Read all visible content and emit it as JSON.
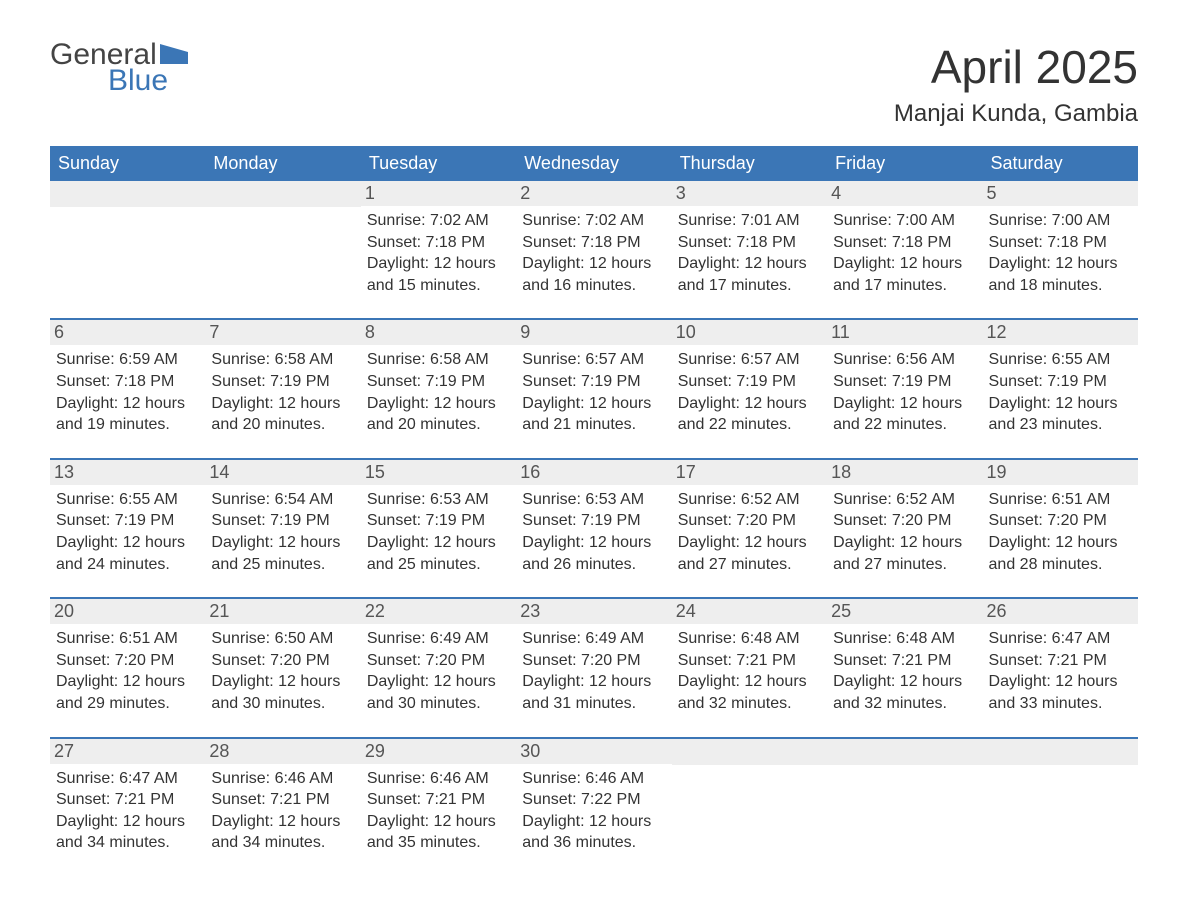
{
  "brand": {
    "top": "General",
    "bottom": "Blue",
    "flag_color": "#3b76b6",
    "top_color": "#444444"
  },
  "title": "April 2025",
  "location": "Manjai Kunda, Gambia",
  "colors": {
    "header_bg": "#3b76b6",
    "header_text": "#ffffff",
    "daynum_bg": "#eeeeee",
    "text": "#333333",
    "week_border": "#3b76b6",
    "background": "#ffffff"
  },
  "typography": {
    "title_fontsize": 46,
    "location_fontsize": 24,
    "dow_fontsize": 18,
    "body_fontsize": 16
  },
  "days_of_week": [
    "Sunday",
    "Monday",
    "Tuesday",
    "Wednesday",
    "Thursday",
    "Friday",
    "Saturday"
  ],
  "weeks": [
    [
      {
        "n": "",
        "sun": "",
        "set": "",
        "dl1": "",
        "dl2": ""
      },
      {
        "n": "",
        "sun": "",
        "set": "",
        "dl1": "",
        "dl2": ""
      },
      {
        "n": "1",
        "sun": "Sunrise: 7:02 AM",
        "set": "Sunset: 7:18 PM",
        "dl1": "Daylight: 12 hours",
        "dl2": "and 15 minutes."
      },
      {
        "n": "2",
        "sun": "Sunrise: 7:02 AM",
        "set": "Sunset: 7:18 PM",
        "dl1": "Daylight: 12 hours",
        "dl2": "and 16 minutes."
      },
      {
        "n": "3",
        "sun": "Sunrise: 7:01 AM",
        "set": "Sunset: 7:18 PM",
        "dl1": "Daylight: 12 hours",
        "dl2": "and 17 minutes."
      },
      {
        "n": "4",
        "sun": "Sunrise: 7:00 AM",
        "set": "Sunset: 7:18 PM",
        "dl1": "Daylight: 12 hours",
        "dl2": "and 17 minutes."
      },
      {
        "n": "5",
        "sun": "Sunrise: 7:00 AM",
        "set": "Sunset: 7:18 PM",
        "dl1": "Daylight: 12 hours",
        "dl2": "and 18 minutes."
      }
    ],
    [
      {
        "n": "6",
        "sun": "Sunrise: 6:59 AM",
        "set": "Sunset: 7:18 PM",
        "dl1": "Daylight: 12 hours",
        "dl2": "and 19 minutes."
      },
      {
        "n": "7",
        "sun": "Sunrise: 6:58 AM",
        "set": "Sunset: 7:19 PM",
        "dl1": "Daylight: 12 hours",
        "dl2": "and 20 minutes."
      },
      {
        "n": "8",
        "sun": "Sunrise: 6:58 AM",
        "set": "Sunset: 7:19 PM",
        "dl1": "Daylight: 12 hours",
        "dl2": "and 20 minutes."
      },
      {
        "n": "9",
        "sun": "Sunrise: 6:57 AM",
        "set": "Sunset: 7:19 PM",
        "dl1": "Daylight: 12 hours",
        "dl2": "and 21 minutes."
      },
      {
        "n": "10",
        "sun": "Sunrise: 6:57 AM",
        "set": "Sunset: 7:19 PM",
        "dl1": "Daylight: 12 hours",
        "dl2": "and 22 minutes."
      },
      {
        "n": "11",
        "sun": "Sunrise: 6:56 AM",
        "set": "Sunset: 7:19 PM",
        "dl1": "Daylight: 12 hours",
        "dl2": "and 22 minutes."
      },
      {
        "n": "12",
        "sun": "Sunrise: 6:55 AM",
        "set": "Sunset: 7:19 PM",
        "dl1": "Daylight: 12 hours",
        "dl2": "and 23 minutes."
      }
    ],
    [
      {
        "n": "13",
        "sun": "Sunrise: 6:55 AM",
        "set": "Sunset: 7:19 PM",
        "dl1": "Daylight: 12 hours",
        "dl2": "and 24 minutes."
      },
      {
        "n": "14",
        "sun": "Sunrise: 6:54 AM",
        "set": "Sunset: 7:19 PM",
        "dl1": "Daylight: 12 hours",
        "dl2": "and 25 minutes."
      },
      {
        "n": "15",
        "sun": "Sunrise: 6:53 AM",
        "set": "Sunset: 7:19 PM",
        "dl1": "Daylight: 12 hours",
        "dl2": "and 25 minutes."
      },
      {
        "n": "16",
        "sun": "Sunrise: 6:53 AM",
        "set": "Sunset: 7:19 PM",
        "dl1": "Daylight: 12 hours",
        "dl2": "and 26 minutes."
      },
      {
        "n": "17",
        "sun": "Sunrise: 6:52 AM",
        "set": "Sunset: 7:20 PM",
        "dl1": "Daylight: 12 hours",
        "dl2": "and 27 minutes."
      },
      {
        "n": "18",
        "sun": "Sunrise: 6:52 AM",
        "set": "Sunset: 7:20 PM",
        "dl1": "Daylight: 12 hours",
        "dl2": "and 27 minutes."
      },
      {
        "n": "19",
        "sun": "Sunrise: 6:51 AM",
        "set": "Sunset: 7:20 PM",
        "dl1": "Daylight: 12 hours",
        "dl2": "and 28 minutes."
      }
    ],
    [
      {
        "n": "20",
        "sun": "Sunrise: 6:51 AM",
        "set": "Sunset: 7:20 PM",
        "dl1": "Daylight: 12 hours",
        "dl2": "and 29 minutes."
      },
      {
        "n": "21",
        "sun": "Sunrise: 6:50 AM",
        "set": "Sunset: 7:20 PM",
        "dl1": "Daylight: 12 hours",
        "dl2": "and 30 minutes."
      },
      {
        "n": "22",
        "sun": "Sunrise: 6:49 AM",
        "set": "Sunset: 7:20 PM",
        "dl1": "Daylight: 12 hours",
        "dl2": "and 30 minutes."
      },
      {
        "n": "23",
        "sun": "Sunrise: 6:49 AM",
        "set": "Sunset: 7:20 PM",
        "dl1": "Daylight: 12 hours",
        "dl2": "and 31 minutes."
      },
      {
        "n": "24",
        "sun": "Sunrise: 6:48 AM",
        "set": "Sunset: 7:21 PM",
        "dl1": "Daylight: 12 hours",
        "dl2": "and 32 minutes."
      },
      {
        "n": "25",
        "sun": "Sunrise: 6:48 AM",
        "set": "Sunset: 7:21 PM",
        "dl1": "Daylight: 12 hours",
        "dl2": "and 32 minutes."
      },
      {
        "n": "26",
        "sun": "Sunrise: 6:47 AM",
        "set": "Sunset: 7:21 PM",
        "dl1": "Daylight: 12 hours",
        "dl2": "and 33 minutes."
      }
    ],
    [
      {
        "n": "27",
        "sun": "Sunrise: 6:47 AM",
        "set": "Sunset: 7:21 PM",
        "dl1": "Daylight: 12 hours",
        "dl2": "and 34 minutes."
      },
      {
        "n": "28",
        "sun": "Sunrise: 6:46 AM",
        "set": "Sunset: 7:21 PM",
        "dl1": "Daylight: 12 hours",
        "dl2": "and 34 minutes."
      },
      {
        "n": "29",
        "sun": "Sunrise: 6:46 AM",
        "set": "Sunset: 7:21 PM",
        "dl1": "Daylight: 12 hours",
        "dl2": "and 35 minutes."
      },
      {
        "n": "30",
        "sun": "Sunrise: 6:46 AM",
        "set": "Sunset: 7:22 PM",
        "dl1": "Daylight: 12 hours",
        "dl2": "and 36 minutes."
      },
      {
        "n": "",
        "sun": "",
        "set": "",
        "dl1": "",
        "dl2": ""
      },
      {
        "n": "",
        "sun": "",
        "set": "",
        "dl1": "",
        "dl2": ""
      },
      {
        "n": "",
        "sun": "",
        "set": "",
        "dl1": "",
        "dl2": ""
      }
    ]
  ]
}
